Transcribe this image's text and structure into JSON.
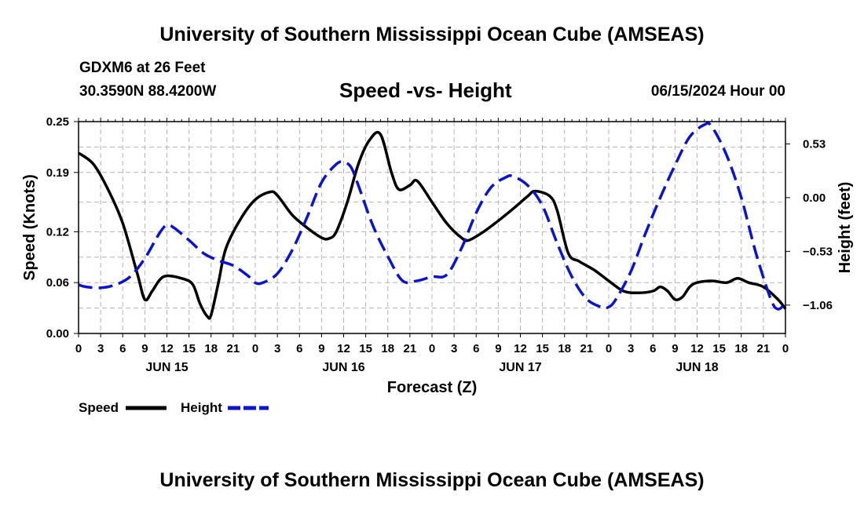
{
  "header": {
    "title_top": "University of Southern Mississippi Ocean Cube (AMSEAS)",
    "station": "GDXM6 at 26 Feet",
    "coords": "30.3590N  88.4200W",
    "chart_title": "Speed -vs- Height",
    "date_hour": "06/15/2024 Hour 00"
  },
  "footer": {
    "title_bottom": "University of Southern Mississippi Ocean Cube (AMSEAS)"
  },
  "colors": {
    "speed": "#000000",
    "height": "#0a14c8",
    "grid": "#b4b4b4"
  },
  "chart_data": {
    "type": "line",
    "title": "Speed -vs- Height",
    "xlabel": "Forecast (Z)",
    "ylabel": "Speed (Knots)",
    "y2label": "Height (feet)",
    "xlim": [
      0,
      96
    ],
    "ylim": [
      0,
      0.25
    ],
    "y2lim": [
      -1.34,
      0.75
    ],
    "y_ticks": [
      0.0,
      0.06,
      0.12,
      0.19,
      0.25
    ],
    "y_tick_labels": [
      "0.00",
      "0.06",
      "0.12",
      "0.19",
      "0.25"
    ],
    "y2_ticks": [
      0.53,
      0.0,
      -0.53,
      -1.06
    ],
    "y2_tick_labels": [
      "0.53",
      "0.00",
      "−0.53",
      "−1.06"
    ],
    "x_tick_labels": [
      "0",
      "3",
      "6",
      "9",
      "12",
      "15",
      "18",
      "21",
      "0",
      "3",
      "6",
      "9",
      "12",
      "15",
      "18",
      "21",
      "0",
      "3",
      "6",
      "9",
      "12",
      "15",
      "18",
      "21",
      "0",
      "3",
      "6",
      "9",
      "12",
      "15",
      "18",
      "21",
      "0"
    ],
    "day_labels": [
      {
        "label": "JUN 15",
        "hour": 12
      },
      {
        "label": "JUN 16",
        "hour": 36
      },
      {
        "label": "JUN 17",
        "hour": 60
      },
      {
        "label": "JUN 18",
        "hour": 84
      }
    ],
    "legend": [
      {
        "name": "Speed",
        "style": "solid"
      },
      {
        "name": "Height",
        "style": "dashed"
      }
    ],
    "series": [
      {
        "name": "Speed",
        "axis": "left",
        "style": "solid",
        "points": [
          [
            0,
            0.213
          ],
          [
            2,
            0.2
          ],
          [
            4,
            0.17
          ],
          [
            6,
            0.13
          ],
          [
            8,
            0.07
          ],
          [
            9,
            0.04
          ],
          [
            10,
            0.05
          ],
          [
            11,
            0.063
          ],
          [
            12,
            0.068
          ],
          [
            14,
            0.065
          ],
          [
            15.5,
            0.058
          ],
          [
            16.5,
            0.035
          ],
          [
            17.5,
            0.02
          ],
          [
            18,
            0.022
          ],
          [
            19,
            0.06
          ],
          [
            20,
            0.1
          ],
          [
            22,
            0.135
          ],
          [
            24,
            0.158
          ],
          [
            26,
            0.167
          ],
          [
            27,
            0.163
          ],
          [
            29,
            0.14
          ],
          [
            31,
            0.125
          ],
          [
            33,
            0.113
          ],
          [
            34,
            0.112
          ],
          [
            35,
            0.12
          ],
          [
            36.5,
            0.155
          ],
          [
            38,
            0.2
          ],
          [
            39.5,
            0.228
          ],
          [
            41,
            0.235
          ],
          [
            42.5,
            0.19
          ],
          [
            43.5,
            0.17
          ],
          [
            45,
            0.175
          ],
          [
            46,
            0.18
          ],
          [
            48,
            0.155
          ],
          [
            50,
            0.13
          ],
          [
            52,
            0.113
          ],
          [
            53,
            0.11
          ],
          [
            55,
            0.12
          ],
          [
            57,
            0.133
          ],
          [
            59,
            0.147
          ],
          [
            61,
            0.162
          ],
          [
            62,
            0.168
          ],
          [
            64,
            0.162
          ],
          [
            65,
            0.145
          ],
          [
            66.5,
            0.095
          ],
          [
            68,
            0.085
          ],
          [
            70,
            0.075
          ],
          [
            72,
            0.062
          ],
          [
            74,
            0.05
          ],
          [
            76,
            0.048
          ],
          [
            78,
            0.05
          ],
          [
            79,
            0.055
          ],
          [
            80,
            0.05
          ],
          [
            81,
            0.04
          ],
          [
            82,
            0.043
          ],
          [
            83,
            0.055
          ],
          [
            84,
            0.06
          ],
          [
            86,
            0.062
          ],
          [
            88,
            0.06
          ],
          [
            89.5,
            0.065
          ],
          [
            91,
            0.06
          ],
          [
            93,
            0.055
          ],
          [
            95,
            0.04
          ],
          [
            96,
            0.029
          ]
        ]
      },
      {
        "name": "Height",
        "axis": "right",
        "style": "dashed",
        "points": [
          [
            0,
            -0.86
          ],
          [
            1,
            -0.88
          ],
          [
            3,
            -0.89
          ],
          [
            5,
            -0.86
          ],
          [
            7,
            -0.78
          ],
          [
            9,
            -0.6
          ],
          [
            11,
            -0.35
          ],
          [
            12,
            -0.27
          ],
          [
            13,
            -0.3
          ],
          [
            15,
            -0.42
          ],
          [
            17,
            -0.55
          ],
          [
            19,
            -0.62
          ],
          [
            21,
            -0.67
          ],
          [
            23,
            -0.77
          ],
          [
            24,
            -0.84
          ],
          [
            25,
            -0.84
          ],
          [
            27,
            -0.75
          ],
          [
            29,
            -0.52
          ],
          [
            31,
            -0.2
          ],
          [
            33,
            0.15
          ],
          [
            35,
            0.33
          ],
          [
            36,
            0.35
          ],
          [
            37,
            0.3
          ],
          [
            38,
            0.12
          ],
          [
            40,
            -0.28
          ],
          [
            42,
            -0.58
          ],
          [
            44,
            -0.82
          ],
          [
            46,
            -0.82
          ],
          [
            48,
            -0.78
          ],
          [
            50,
            -0.76
          ],
          [
            52,
            -0.5
          ],
          [
            54,
            -0.15
          ],
          [
            56,
            0.1
          ],
          [
            58,
            0.2
          ],
          [
            59,
            0.21
          ],
          [
            61,
            0.12
          ],
          [
            63,
            -0.08
          ],
          [
            65,
            -0.45
          ],
          [
            67,
            -0.78
          ],
          [
            69,
            -1.0
          ],
          [
            71,
            -1.08
          ],
          [
            72,
            -1.08
          ],
          [
            73,
            -1.0
          ],
          [
            75,
            -0.73
          ],
          [
            77,
            -0.35
          ],
          [
            79,
            0.0
          ],
          [
            81,
            0.32
          ],
          [
            83,
            0.6
          ],
          [
            85,
            0.72
          ],
          [
            86,
            0.7
          ],
          [
            88,
            0.42
          ],
          [
            90,
            0.0
          ],
          [
            92,
            -0.55
          ],
          [
            94,
            -1.0
          ],
          [
            95,
            -1.1
          ],
          [
            96,
            -1.04
          ]
        ]
      }
    ]
  }
}
